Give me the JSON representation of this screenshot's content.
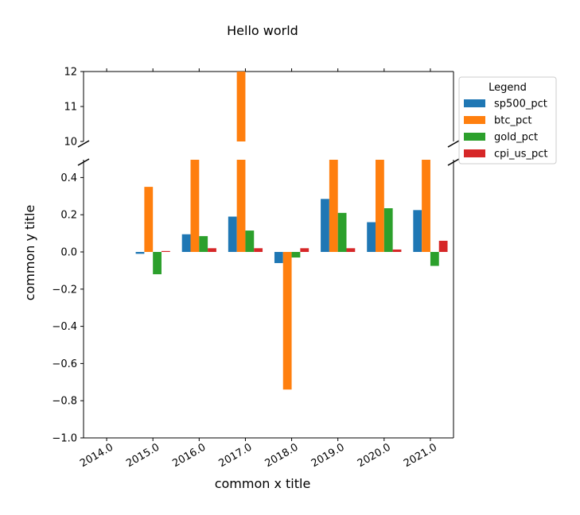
{
  "chart_data": {
    "type": "bar",
    "title": "Hello world",
    "xlabel": "common x title",
    "ylabel": "common y title",
    "categories": [
      "2014.0",
      "2015.0",
      "2016.0",
      "2017.0",
      "2018.0",
      "2019.0",
      "2020.0",
      "2021.0"
    ],
    "series": [
      {
        "name": "sp500_pct",
        "color": "#1f77b4",
        "values": [
          null,
          -0.01,
          0.095,
          0.19,
          -0.06,
          0.285,
          0.16,
          0.225
        ]
      },
      {
        "name": "btc_pct",
        "color": "#ff7f0e",
        "values": [
          null,
          0.35,
          1.25,
          13.2,
          -0.74,
          0.92,
          3.0,
          0.6
        ]
      },
      {
        "name": "gold_pct",
        "color": "#2ca02c",
        "values": [
          null,
          -0.12,
          0.085,
          0.115,
          -0.03,
          0.21,
          0.235,
          -0.075
        ]
      },
      {
        "name": "cpi_us_pct",
        "color": "#d62728",
        "values": [
          null,
          0.005,
          0.02,
          0.02,
          0.02,
          0.02,
          0.013,
          0.06
        ]
      }
    ],
    "y_axis_break": {
      "upper_range": [
        10,
        12
      ],
      "upper_ticks": [
        "10",
        "11",
        "12"
      ],
      "lower_range": [
        -1.0,
        0.5
      ],
      "lower_ticks": [
        "−1.0",
        "−0.8",
        "−0.6",
        "−0.4",
        "−0.2",
        "0.0",
        "0.2",
        "0.4"
      ]
    },
    "legend": {
      "title": "Legend",
      "placement": "upper-right-outside"
    },
    "grid": false
  }
}
